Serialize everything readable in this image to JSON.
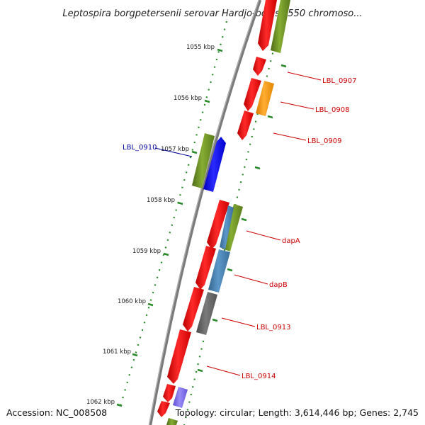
{
  "title": "Leptospira borgpetersenii serovar Hardjo-bovis L550 chromoso...",
  "footer": {
    "accession": "Accession: NC_008508",
    "topology": "Topology: circular; Length: 3,614,446 bp; Genes: 2,745"
  },
  "ticks": [
    "1055 kbp",
    "1056 kbp",
    "1057 kbp",
    "1058 kbp",
    "1059 kbp",
    "1060 kbp",
    "1061 kbp",
    "1062 kbp"
  ],
  "labels": {
    "lbl_0907": "LBL_0907",
    "lbl_0908": "LBL_0908",
    "lbl_0909": "LBL_0909",
    "lbl_0910": "LBL_0910",
    "dapA": "dapA",
    "dapB": "dapB",
    "lbl_0913": "LBL_0913",
    "lbl_0914": "LBL_0914"
  },
  "colors": {
    "backbone": "#888888",
    "tick": "#2a8a2a",
    "red": "#ee0000",
    "olive": "#6b8e23",
    "orange": "#ff9900",
    "blue": "#0000ff",
    "steelblue": "#4682b4",
    "gray": "#666666",
    "purple": "#7b68ee",
    "label_red": "#cc0000",
    "label_blue": "#000099"
  }
}
